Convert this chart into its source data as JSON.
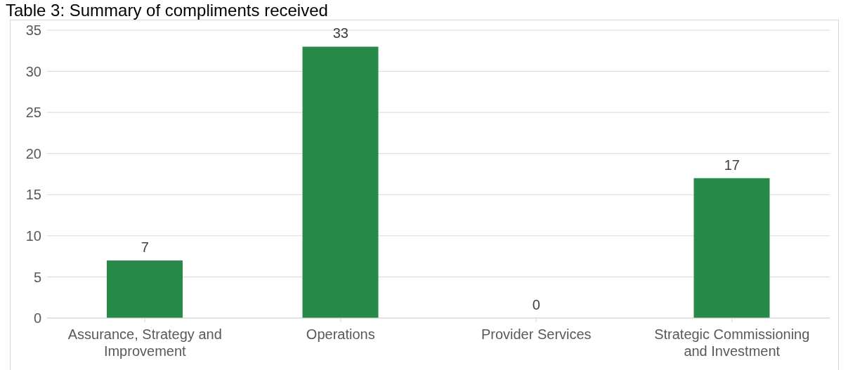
{
  "chart_data": {
    "type": "bar",
    "title": "Table 3: Summary of compliments received",
    "categories": [
      "Assurance, Strategy and Improvement",
      "Operations",
      "Provider Services",
      "Strategic Commissioning and Investment"
    ],
    "values": [
      7,
      33,
      0,
      17
    ],
    "color": "#288a48",
    "ylim": [
      0,
      35
    ],
    "yticks": [
      0,
      5,
      10,
      15,
      20,
      25,
      30,
      35
    ],
    "grid": "y",
    "data_labels": true
  }
}
